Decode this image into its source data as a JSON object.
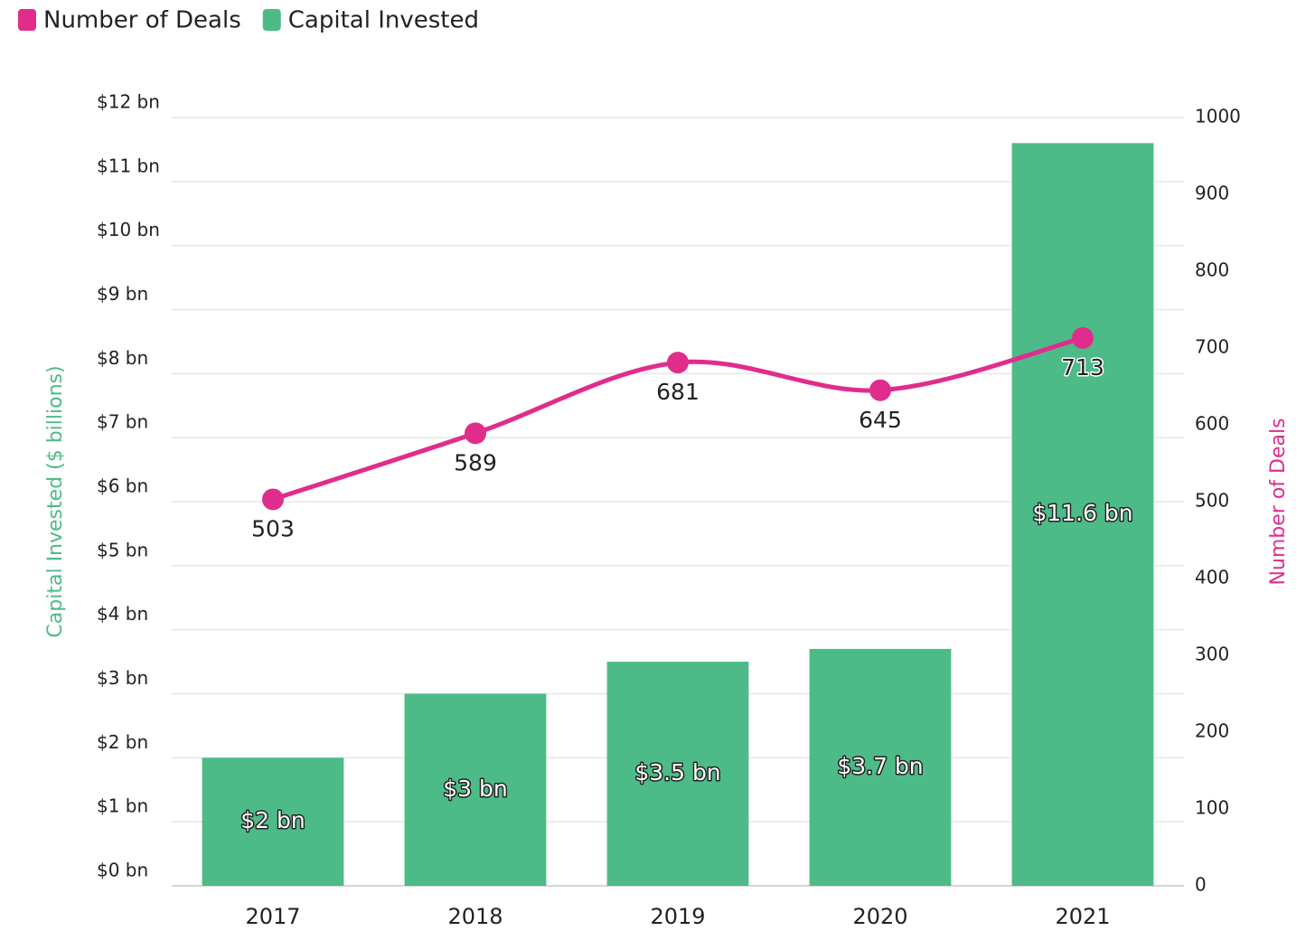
{
  "chart_data": {
    "type": "bar_line",
    "categories": [
      "2017",
      "2018",
      "2019",
      "2020",
      "2021"
    ],
    "series": [
      {
        "name": "Number of Deals",
        "color": "#e02d8c",
        "type": "line",
        "axis": "y2",
        "values": [
          503,
          589,
          681,
          645,
          713
        ]
      },
      {
        "name": "Capital Invested",
        "color": "#4dbb87",
        "type": "bar",
        "axis": "y",
        "values": [
          2,
          3,
          3.5,
          3.7,
          11.6
        ],
        "value_labels": [
          "$2 bn",
          "$3 bn",
          "$3.5 bn",
          "$3.7 bn",
          "$11.6 bn"
        ]
      }
    ],
    "ylabel": "Capital Invested ($ billions)",
    "y2label": "Number of Deals",
    "ylim": [
      0,
      12
    ],
    "yticks": [
      {
        "value": 0,
        "label": "$0 bn"
      },
      {
        "value": 1,
        "label": "$1 bn"
      },
      {
        "value": 2,
        "label": "$2 bn"
      },
      {
        "value": 3,
        "label": "$3 bn"
      },
      {
        "value": 4,
        "label": "$4 bn"
      },
      {
        "value": 5,
        "label": "$5 bn"
      },
      {
        "value": 6,
        "label": "$6 bn"
      },
      {
        "value": 7,
        "label": "$7 bn"
      },
      {
        "value": 8,
        "label": "$8 bn"
      },
      {
        "value": 9,
        "label": "$9 bn"
      },
      {
        "value": 10,
        "label": "$10 bn"
      },
      {
        "value": 11,
        "label": "$11 bn"
      },
      {
        "value": 12,
        "label": "$12 bn"
      }
    ],
    "y2lim": [
      0,
      1000
    ],
    "y2ticks": [
      0,
      100,
      200,
      300,
      400,
      500,
      600,
      700,
      800,
      900,
      1000
    ],
    "grid": true,
    "legend": "top-left"
  }
}
